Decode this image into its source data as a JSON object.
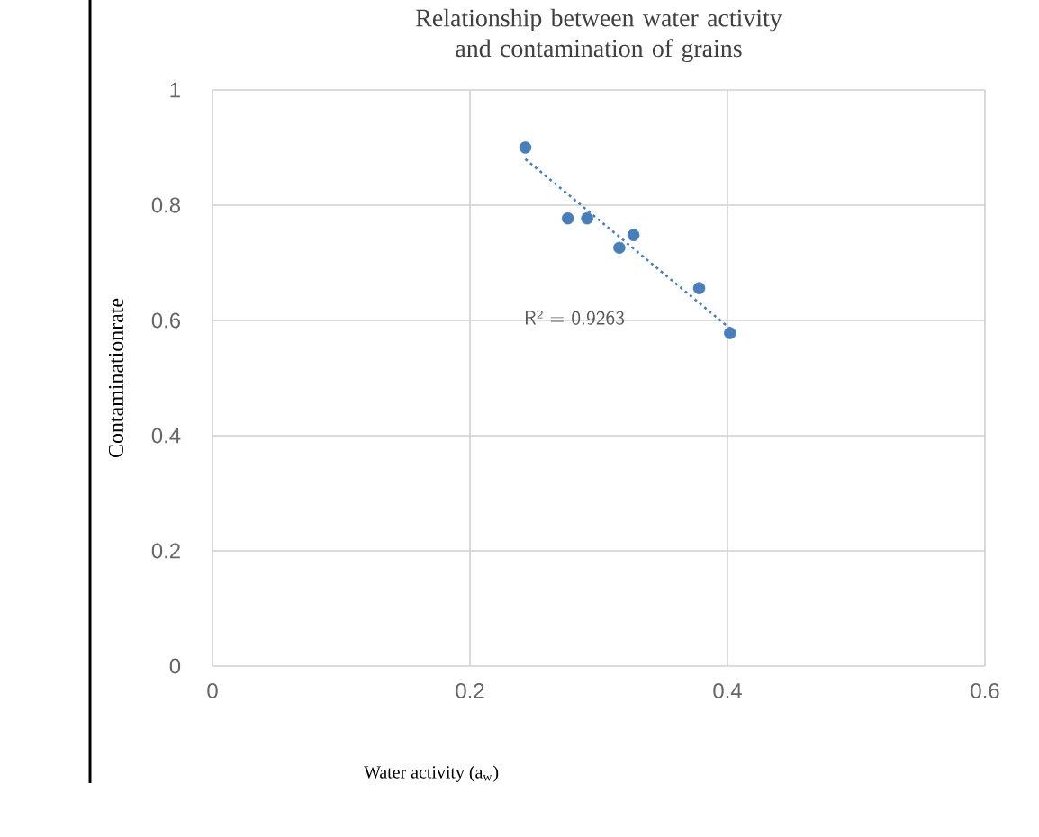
{
  "chart_data": {
    "type": "scatter",
    "title": "Relationship between water activity and contamination of grains",
    "xlabel": "Water activity (a$_{w}$)",
    "ylabel": "Contaminationrate",
    "series": [
      {
        "color": "#4a7ebb",
        "marker": "circle",
        "x": [
          0.243,
          0.276,
          0.291,
          0.316,
          0.327,
          0.378,
          0.402
        ],
        "values": [
          0.9,
          0.777,
          0.777,
          0.726,
          0.748,
          0.656,
          0.578
        ]
      },
      {
        "type": "line",
        "color": "#4a7ebb",
        "line_style": "dotted",
        "marker": "none",
        "x": [
          0.243,
          0.402
        ],
        "values": [
          0.88,
          0.586
        ]
      }
    ],
    "annotations": [
      "R² = 0.9263"
    ],
    "xlim": [
      0,
      0.6
    ],
    "xticks": [
      0,
      0.2,
      0.4,
      0.6
    ],
    "ylim": [
      0,
      1
    ],
    "yticks": [
      0,
      0.2,
      0.4,
      0.6,
      0.8,
      1
    ],
    "grid": true
  }
}
